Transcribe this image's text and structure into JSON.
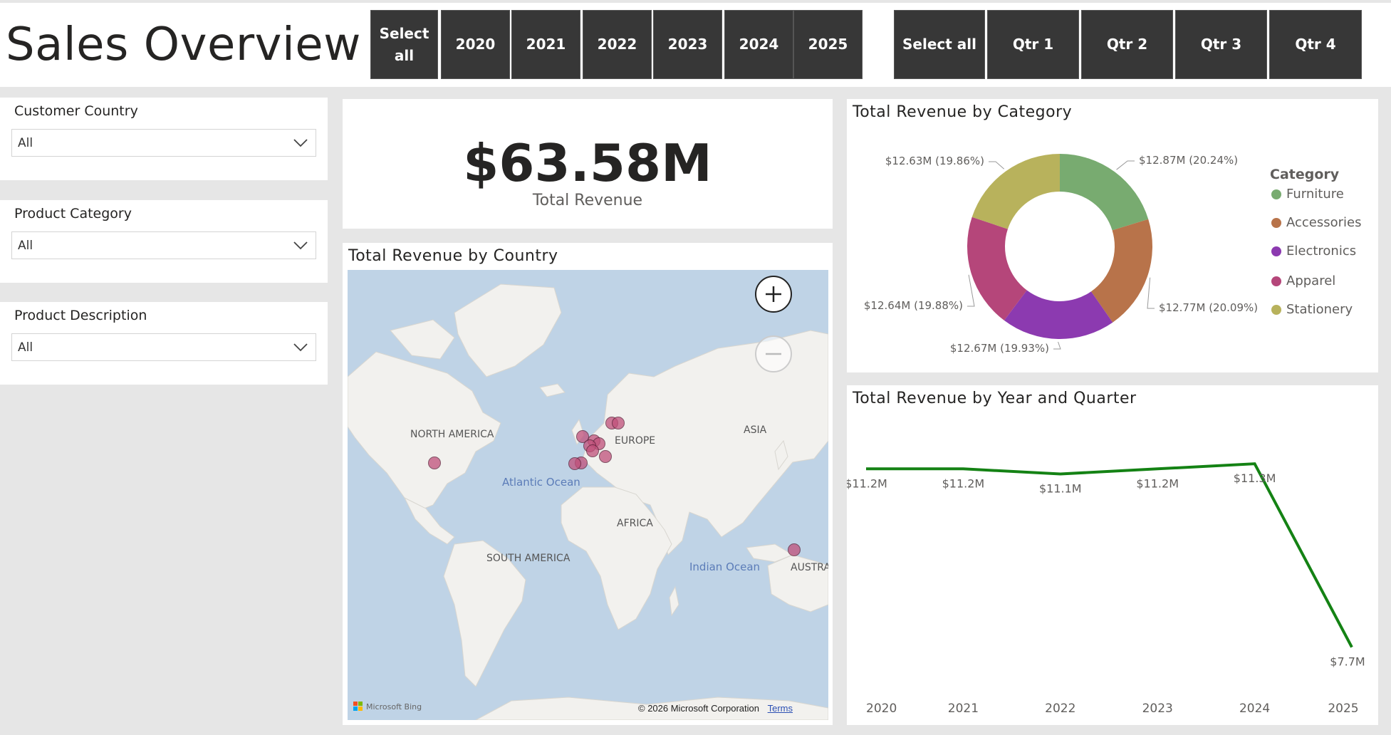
{
  "header": {
    "title": "Sales Overview"
  },
  "year_slicer": [
    "Select\nall",
    "2020",
    "2021",
    "2022",
    "2023",
    "2024",
    "2025"
  ],
  "quarter_slicer": [
    "Select all",
    "Qtr 1",
    "Qtr 2",
    "Qtr 3",
    "Qtr 4"
  ],
  "filters": [
    {
      "label": "Customer Country",
      "value": "All"
    },
    {
      "label": "Product Category",
      "value": "All"
    },
    {
      "label": "Product Description",
      "value": "All"
    }
  ],
  "kpi": {
    "value": "$63.58M",
    "label": "Total Revenue"
  },
  "map": {
    "title": "Total Revenue by Country",
    "labels": {
      "north_america": "NORTH AMERICA",
      "europe": "EUROPE",
      "asia": "ASIA",
      "atlantic": "Atlantic Ocean",
      "africa": "AFRICA",
      "south_america": "SOUTH AMERICA",
      "indian": "Indian Ocean",
      "australia": "AUSTRA"
    },
    "attribution": "© 2026 Microsoft Corporation",
    "terms": "Terms",
    "bing": "Microsoft Bing",
    "marker_color": "#c0507a"
  },
  "donut": {
    "title": "Total Revenue by Category",
    "legend_title": "Category",
    "colors": {
      "Furniture": "#78ab70",
      "Accessories": "#b8734a",
      "Electronics": "#8c3ab0",
      "Apparel": "#b5467a",
      "Stationery": "#b8b25c"
    }
  },
  "line": {
    "title": "Total Revenue by Year and Quarter",
    "color": "#148214"
  },
  "chart_data": [
    {
      "type": "pie",
      "title": "Total Revenue by Category",
      "legend_title": "Category",
      "categories": [
        "Furniture",
        "Accessories",
        "Electronics",
        "Apparel",
        "Stationery"
      ],
      "values": [
        12.87,
        12.77,
        12.67,
        12.64,
        12.63
      ],
      "labels": [
        "$12.87M (20.24%)",
        "$12.77M (20.09%)",
        "$12.67M (19.93%)",
        "$12.64M (19.88%)",
        "$12.63M (19.86%)"
      ],
      "legend": "right"
    },
    {
      "type": "line",
      "title": "Total Revenue by Year and Quarter",
      "x": [
        "2020",
        "2021",
        "2022",
        "2023",
        "2024",
        "2025"
      ],
      "values": [
        11.2,
        11.2,
        11.1,
        11.2,
        11.3,
        7.7
      ],
      "data_labels": [
        "$11.2M",
        "$11.2M",
        "$11.1M",
        "$11.2M",
        "$11.3M",
        "$7.7M"
      ],
      "ylim": [
        7.5,
        11.4
      ],
      "grid": false
    }
  ]
}
